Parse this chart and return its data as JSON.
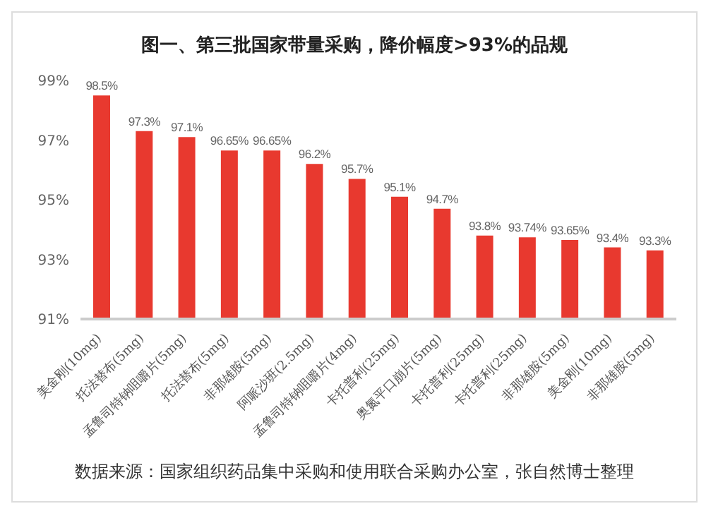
{
  "chart_data": {
    "type": "bar",
    "title": "图一、第三批国家带量采购，降价幅度>93%的品规",
    "categories": [
      "美金刚(10mg)",
      "托法替布(5mg)",
      "孟鲁司特钠咀嚼片(5mg)",
      "托法替布(5mg)",
      "非那雄胺(5mg)",
      "阿哌沙班(2.5mg)",
      "孟鲁司特钠咀嚼片(4mg)",
      "卡托普利(25mg)",
      "奥氮平口崩片(5mg)",
      "卡托普利(25mg)",
      "卡托普利(25mg)",
      "非那雄胺(5mg)",
      "美金刚(10mg)",
      "非那雄胺(5mg)"
    ],
    "values": [
      98.5,
      97.3,
      97.1,
      96.65,
      96.65,
      96.2,
      95.7,
      95.1,
      94.7,
      93.8,
      93.74,
      93.65,
      93.4,
      93.3
    ],
    "value_labels": [
      "98.5%",
      "97.3%",
      "97.1%",
      "96.65%",
      "96.65%",
      "96.2%",
      "95.7%",
      "95.1%",
      "94.7%",
      "93.8%",
      "93.74%",
      "93.65%",
      "93.4%",
      "93.3%"
    ],
    "color": "#e8392f",
    "ylim": [
      91,
      99
    ],
    "yticks": [
      {
        "value": 91,
        "label": "91%"
      },
      {
        "value": 93,
        "label": "93%"
      },
      {
        "value": 95,
        "label": "95%"
      },
      {
        "value": 97,
        "label": "97%"
      },
      {
        "value": 99,
        "label": "99%"
      }
    ],
    "grid": false,
    "legend": false,
    "annotations": [
      "数据来源：国家组织药品集中采购和使用联合采购办公室，张自然博士整理"
    ]
  }
}
